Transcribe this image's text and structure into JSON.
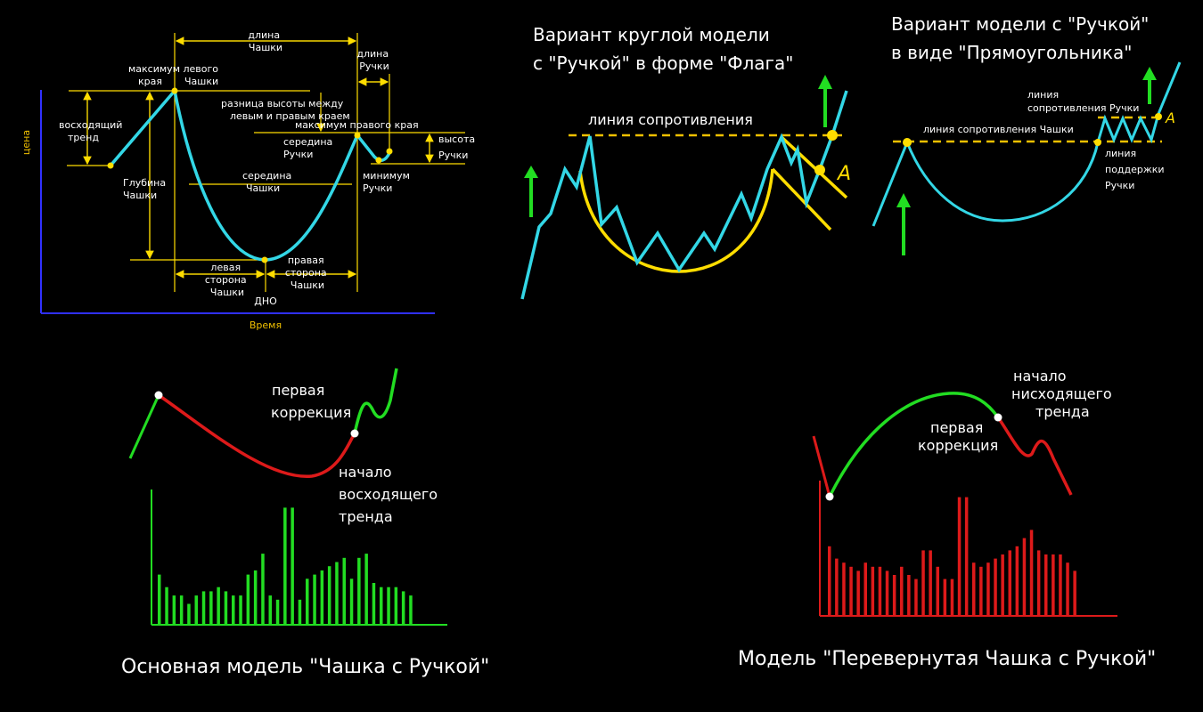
{
  "colors": {
    "background": "#000000",
    "axis": "#3030ff",
    "curve": "#33d7e6",
    "yellow": "#ffdd00",
    "green": "#22dd22",
    "red": "#dd1a1a",
    "white": "#ffffff"
  },
  "anatomy": {
    "axis_x_label": "Время",
    "axis_y_label": "цена",
    "labels": {
      "cup_length": [
        "длина",
        "Чашки"
      ],
      "handle_length": [
        "длина",
        "Ручки"
      ],
      "left_max": [
        "максимум  левого",
        "края",
        "Чашки"
      ],
      "height_diff": [
        "разница высоты между",
        "левым и правым краем"
      ],
      "right_max": "максимум правого края",
      "uptrend": [
        "восходящий",
        "тренд"
      ],
      "handle_mid": [
        "середина",
        "Ручки"
      ],
      "handle_height": [
        "высота",
        "Ручки"
      ],
      "cup_depth": [
        "Глубина",
        "Чашки"
      ],
      "cup_mid": [
        "середина",
        "Чашки"
      ],
      "handle_min": [
        "минимум",
        "Ручки"
      ],
      "left_side": [
        "левая",
        "сторона",
        "Чашки"
      ],
      "right_side": [
        "правая",
        "сторона",
        "Чашки"
      ],
      "bottom": "ДНО"
    }
  },
  "flag_variant": {
    "title": [
      "Вариант круглой модели",
      "с \"Ручкой\" в форме \"Флага\""
    ],
    "resistance_label": "линия сопротивления",
    "point_label": "A"
  },
  "rect_variant": {
    "title": [
      "Вариант модели с \"Ручкой\"",
      "в виде \"Прямоугольника\""
    ],
    "handle_resistance": [
      "линия",
      "сопротивления Ручки"
    ],
    "cup_resistance": "линия сопротивления Чашки",
    "handle_support": [
      "линия",
      "поддержки",
      "Ручки"
    ],
    "point_label": "A"
  },
  "basic_model": {
    "first_correction": [
      "первая",
      "коррекция"
    ],
    "uptrend_start": [
      "начало",
      "восходящего",
      "тренда"
    ],
    "caption": "Основная модель \"Чашка с Ручкой\"",
    "volumes": [
      12,
      9,
      7,
      7,
      5,
      7,
      8,
      8,
      9,
      8,
      7,
      7,
      12,
      13,
      17,
      7,
      6,
      28,
      28,
      6,
      11,
      12,
      13,
      14,
      15,
      16,
      11,
      16,
      17,
      10,
      9,
      9,
      9,
      8,
      7
    ]
  },
  "inverted_model": {
    "uptrend_start": [
      "начало",
      "нисходящего",
      "тренда"
    ],
    "first_correction": [
      "первая",
      "коррекция"
    ],
    "caption": "Модель \"Перевернутая Чашка с Ручкой\"",
    "volumes": [
      17,
      14,
      13,
      12,
      11,
      13,
      12,
      12,
      11,
      10,
      12,
      10,
      9,
      16,
      16,
      12,
      9,
      9,
      29,
      29,
      13,
      12,
      13,
      14,
      15,
      16,
      17,
      19,
      21,
      16,
      15,
      15,
      15,
      13,
      11
    ]
  }
}
